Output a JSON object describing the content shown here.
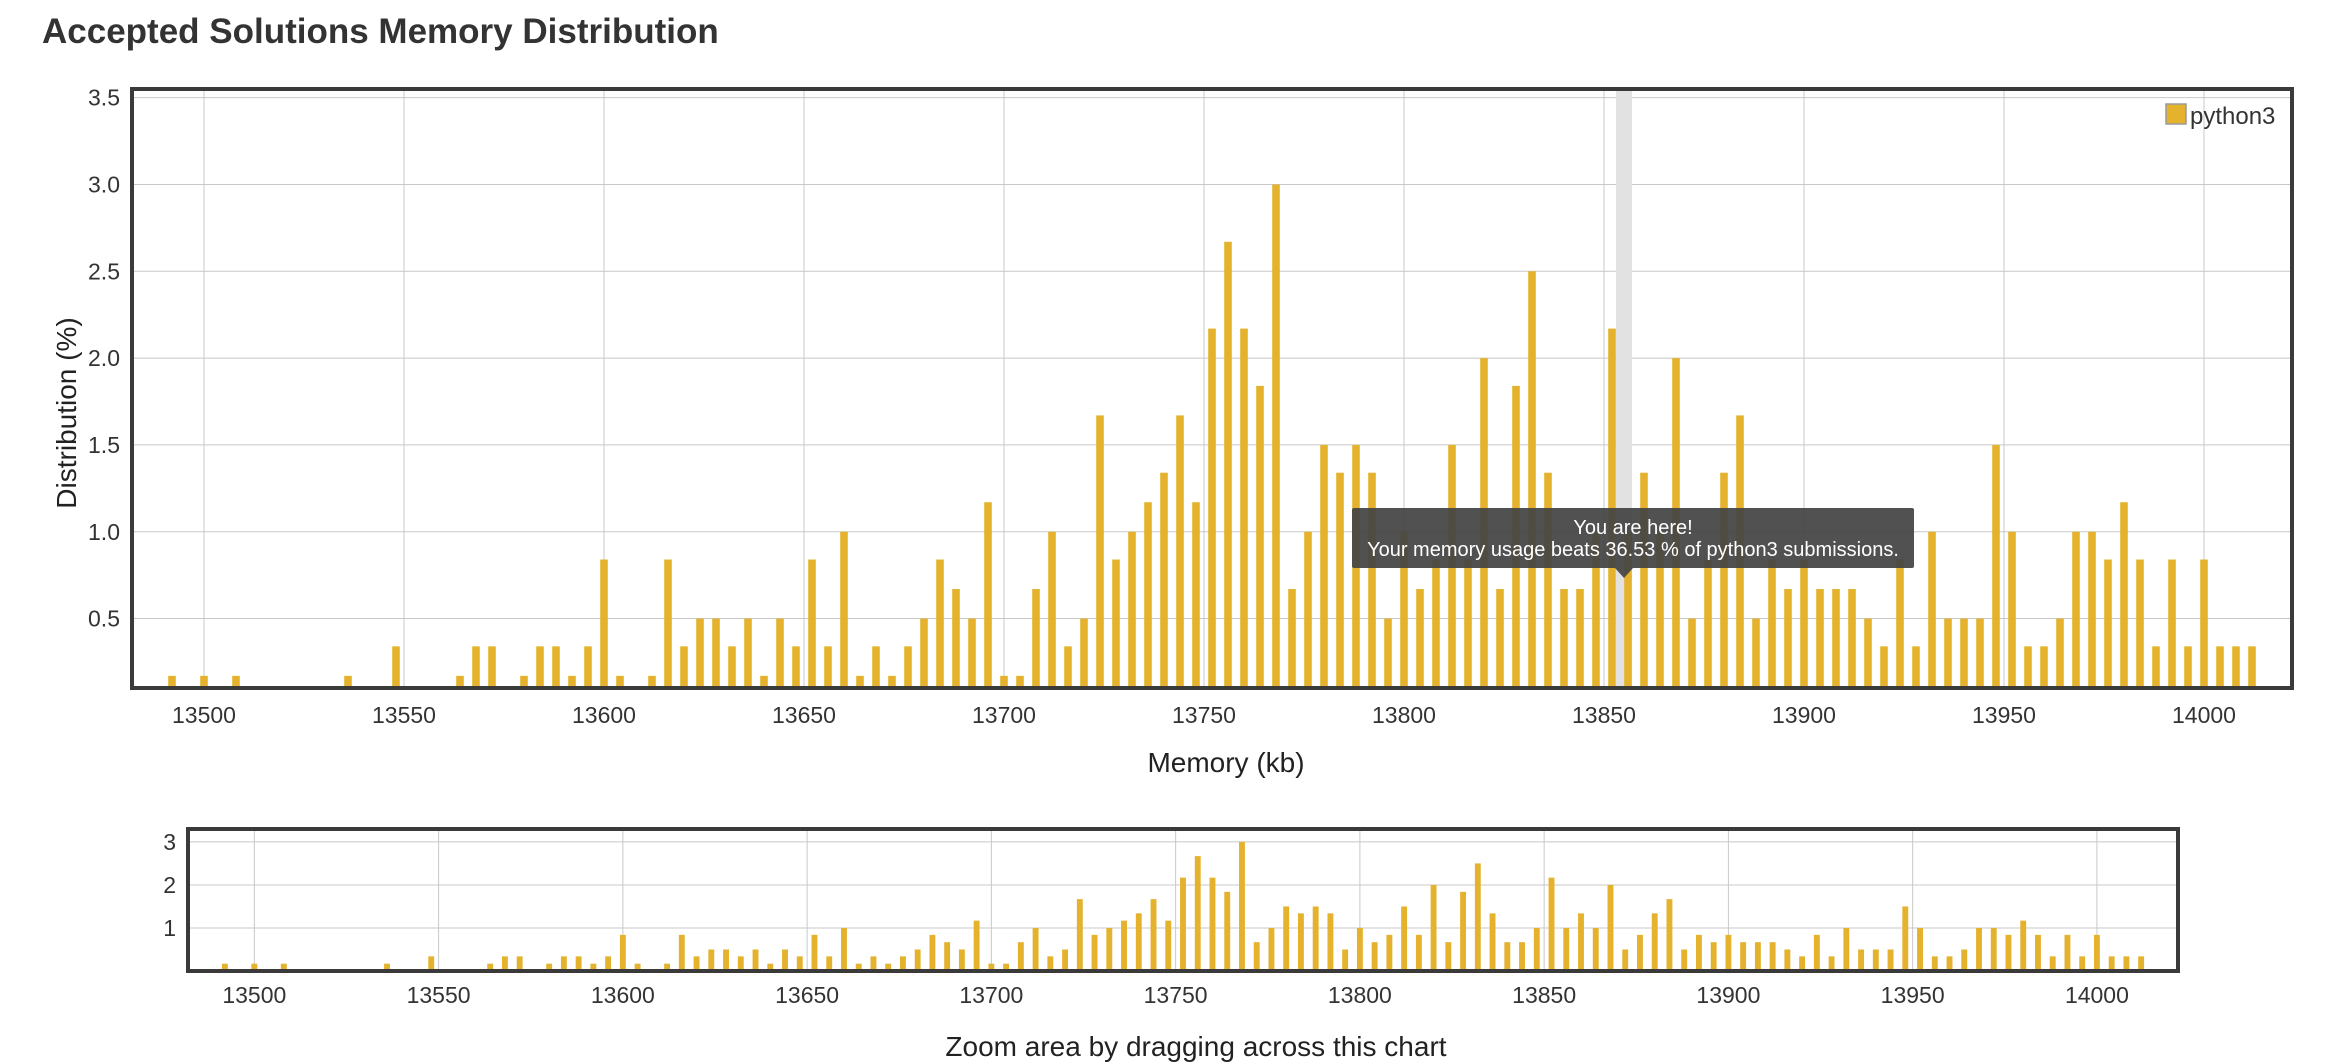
{
  "page": {
    "title": "Accepted Solutions Memory Distribution"
  },
  "colors": {
    "bar": "#e5b22e",
    "highlight_band": "#e2e2e2",
    "grid": "#c8c8c8",
    "frame": "#3a3a3a",
    "tooltip_bg": "#444444"
  },
  "chart_data": [
    {
      "type": "bar",
      "xlabel": "Memory (kb)",
      "ylabel": "Distribution (%)",
      "xlim": [
        13482,
        14022
      ],
      "ylim": [
        0.1,
        3.55
      ],
      "x_ticks": [
        "13500",
        "13550",
        "13600",
        "13650",
        "13700",
        "13750",
        "13800",
        "13850",
        "13900",
        "13950",
        "14000"
      ],
      "y_ticks": [
        "0.5",
        "1.0",
        "1.5",
        "2.0",
        "2.5",
        "3.0",
        "3.5"
      ],
      "grid": true,
      "legend": {
        "position": "top-right",
        "entries": [
          "python3"
        ]
      },
      "series": [
        {
          "name": "python3",
          "x": [
            13492,
            13500,
            13508,
            13536,
            13548,
            13564,
            13568,
            13572,
            13580,
            13584,
            13588,
            13592,
            13596,
            13600,
            13604,
            13612,
            13616,
            13620,
            13624,
            13628,
            13632,
            13636,
            13640,
            13644,
            13648,
            13652,
            13656,
            13660,
            13664,
            13668,
            13672,
            13676,
            13680,
            13684,
            13688,
            13692,
            13696,
            13700,
            13704,
            13708,
            13712,
            13716,
            13720,
            13724,
            13728,
            13732,
            13736,
            13740,
            13744,
            13748,
            13752,
            13756,
            13760,
            13764,
            13768,
            13772,
            13776,
            13780,
            13784,
            13788,
            13792,
            13796,
            13800,
            13804,
            13808,
            13812,
            13816,
            13820,
            13824,
            13828,
            13832,
            13836,
            13840,
            13844,
            13848,
            13852,
            13856,
            13860,
            13864,
            13868,
            13872,
            13876,
            13880,
            13884,
            13888,
            13892,
            13896,
            13900,
            13904,
            13908,
            13912,
            13916,
            13920,
            13924,
            13928,
            13932,
            13936,
            13940,
            13944,
            13948,
            13952,
            13956,
            13960,
            13964,
            13968,
            13972,
            13976,
            13980,
            13984,
            13988,
            13992,
            13996,
            14000,
            14004,
            14008,
            14012
          ],
          "values": [
            0.17,
            0.17,
            0.17,
            0.17,
            0.34,
            0.17,
            0.34,
            0.34,
            0.17,
            0.34,
            0.34,
            0.17,
            0.34,
            0.84,
            0.17,
            0.17,
            0.84,
            0.34,
            0.5,
            0.5,
            0.34,
            0.5,
            0.17,
            0.5,
            0.34,
            0.84,
            0.34,
            1.0,
            0.17,
            0.34,
            0.17,
            0.34,
            0.5,
            0.84,
            0.67,
            0.5,
            1.17,
            0.17,
            0.17,
            0.67,
            1.0,
            0.34,
            0.5,
            1.67,
            0.84,
            1.0,
            1.17,
            1.34,
            1.67,
            1.17,
            2.17,
            2.67,
            2.17,
            1.84,
            3.0,
            0.67,
            1.0,
            1.5,
            1.34,
            1.5,
            1.34,
            0.5,
            1.0,
            0.67,
            0.84,
            1.5,
            0.84,
            2.0,
            0.67,
            1.84,
            2.5,
            1.34,
            0.67,
            0.67,
            1.0,
            2.17,
            1.0,
            1.34,
            1.0,
            2.0,
            0.5,
            0.84,
            1.34,
            1.67,
            0.5,
            0.84,
            0.67,
            0.84,
            0.67,
            0.67,
            0.67,
            0.5,
            0.34,
            0.84,
            0.34,
            1.0,
            0.5,
            0.5,
            0.5,
            1.5,
            1.0,
            0.34,
            0.34,
            0.5,
            1.0,
            1.0,
            0.84,
            1.17,
            0.84,
            0.34,
            0.84,
            0.34,
            0.84,
            0.34,
            0.34,
            0.34
          ]
        }
      ],
      "highlight": {
        "x": 13855,
        "label": "You are here!",
        "text": "Your memory usage beats 36.53 % of python3 submissions."
      }
    },
    {
      "type": "bar",
      "xlabel": "Zoom area by dragging across this chart",
      "xlim": [
        13482,
        14022
      ],
      "ylim": [
        0,
        3.3
      ],
      "x_ticks": [
        "13500",
        "13550",
        "13600",
        "13650",
        "13700",
        "13750",
        "13800",
        "13850",
        "13900",
        "13950",
        "14000"
      ],
      "y_ticks": [
        "1",
        "2",
        "3"
      ],
      "grid": true,
      "series_ref": "same data as main chart"
    }
  ]
}
